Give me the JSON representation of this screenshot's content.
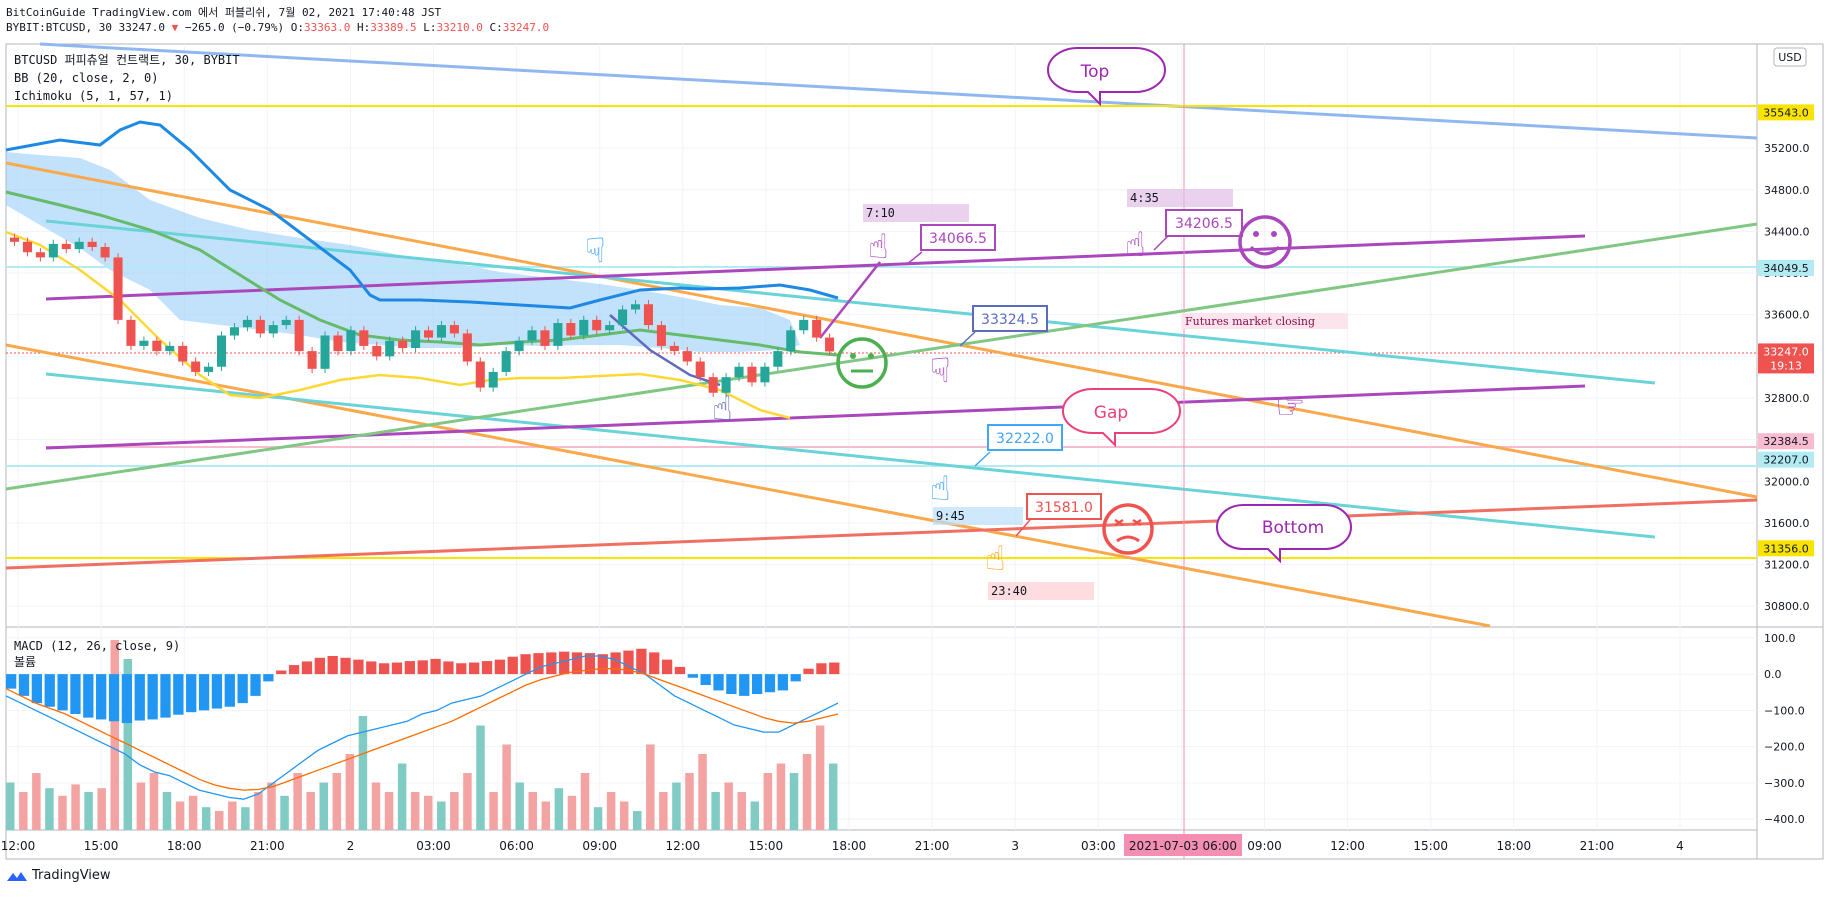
{
  "header": {
    "line1": "BitCoinGuide TradingView.com 에서 퍼블리쉬, 7월 02, 2021 17:40:48 JST",
    "symbol": "BYBIT:BTCUSD, 30",
    "last": "33247.0",
    "change": "−265.0 (−0.79%)",
    "o_label": "O:",
    "o": "33363.0",
    "h_label": "H:",
    "h": "33389.5",
    "l_label": "L:",
    "l": "33210.0",
    "c_label": "C:",
    "c": "33247.0"
  },
  "legend": {
    "title": "BTCUSD 퍼피츄얼 컨트랙트, 30, BYBIT",
    "bb": "BB (20, close, 2, 0)",
    "ichimoku": "Ichimoku (5, 1, 57, 1)",
    "macd": "MACD (12, 26, close, 9)",
    "volume": "볼륨"
  },
  "currency": "USD",
  "footer": {
    "brand": "TradingView"
  },
  "colors": {
    "up": "#26a69a",
    "down": "#ef5350",
    "accent": "#2962ff"
  },
  "chart_data": [
    {
      "type": "candlestick",
      "title": "BTCUSD 퍼피츄얼 컨트랙트, 30, BYBIT",
      "ylim": [
        30600,
        36200
      ],
      "y_ticks": [
        "35200.0",
        "34800.0",
        "34400.0",
        "34000.0",
        "33600.0",
        "33200.0",
        "32800.0",
        "32400.0",
        "32000.0",
        "31600.0",
        "31200.0",
        "30800.0"
      ],
      "x_ticks": [
        "12:00",
        "15:00",
        "18:00",
        "21:00",
        "2",
        "03:00",
        "06:00",
        "09:00",
        "12:00",
        "15:00",
        "18:00",
        "21:00",
        "3",
        "03:00",
        "06:00",
        "09:00",
        "12:00",
        "15:00",
        "18:00",
        "21:00",
        "4"
      ],
      "crosshair_label": "2021-07-03  06:00",
      "close": [
        34300,
        34200,
        34150,
        34280,
        34230,
        34300,
        34250,
        34150,
        33550,
        33300,
        33350,
        33250,
        33300,
        33150,
        33050,
        33100,
        33400,
        33480,
        33550,
        33420,
        33500,
        33550,
        33250,
        33080,
        33400,
        33250,
        33450,
        33300,
        33200,
        33350,
        33280,
        33450,
        33380,
        33500,
        33420,
        33150,
        32900,
        33050,
        33250,
        33350,
        33450,
        33300,
        33520,
        33400,
        33550,
        33450,
        33500,
        33650,
        33700,
        33500,
        33300,
        33250,
        33150,
        33000,
        32850,
        33000,
        33100,
        32950,
        33100,
        33250,
        33450,
        33550,
        33380,
        33247
      ],
      "price_labels": [
        {
          "value": "35543.0",
          "color": "#f9e400"
        },
        {
          "value": "34049.5",
          "color": "#b2ebf2"
        },
        {
          "value": "33247.0",
          "color": "#ef5350",
          "sub": "19:13"
        },
        {
          "value": "32384.5",
          "color": "#f8bbd0"
        },
        {
          "value": "32207.0",
          "color": "#b2ebf2"
        },
        {
          "value": "31356.0",
          "color": "#f9e400"
        }
      ],
      "annotations": {
        "callouts": [
          {
            "text": "34066.5",
            "color": "#ab47bc"
          },
          {
            "text": "34206.5",
            "color": "#ab47bc"
          },
          {
            "text": "33324.5",
            "color": "#5c6bc0"
          },
          {
            "text": "32222.0",
            "color": "#42a5f5"
          },
          {
            "text": "31581.0",
            "color": "#ef5350"
          }
        ],
        "bubbles": [
          {
            "text": "Top",
            "color": "#9c27b0"
          },
          {
            "text": "Gap",
            "color": "#ec407a"
          },
          {
            "text": "Bottom",
            "color": "#9c27b0"
          }
        ],
        "time_boxes": [
          "7:10",
          "4:35",
          "9:45",
          "23:40"
        ],
        "notes": [
          "Futures market closing"
        ]
      }
    },
    {
      "type": "bar",
      "title": "MACD (12, 26, close, 9)",
      "ylim": [
        -430,
        130
      ],
      "y_ticks": [
        "100.0",
        "0.0",
        "−100.0",
        "−200.0",
        "−300.0",
        "−400.0"
      ],
      "histogram": [
        -40,
        -60,
        -80,
        -90,
        -100,
        -110,
        -120,
        -125,
        -130,
        -135,
        -128,
        -125,
        -120,
        -112,
        -105,
        -100,
        -95,
        -90,
        -80,
        -60,
        -20,
        10,
        25,
        35,
        45,
        50,
        45,
        40,
        35,
        30,
        32,
        36,
        38,
        42,
        35,
        30,
        32,
        36,
        40,
        48,
        55,
        58,
        60,
        62,
        60,
        58,
        55,
        60,
        65,
        70,
        60,
        40,
        20,
        -10,
        -30,
        -45,
        -55,
        -60,
        -55,
        -50,
        -45,
        -20,
        15,
        30,
        32
      ],
      "macd": [
        -60,
        -80,
        -100,
        -120,
        -140,
        -160,
        -180,
        -200,
        -220,
        -250,
        -270,
        -280,
        -300,
        -320,
        -330,
        -340,
        -345,
        -330,
        -300,
        -270,
        -240,
        -210,
        -190,
        -170,
        -160,
        -150,
        -140,
        -130,
        -110,
        -100,
        -80,
        -70,
        -60,
        -40,
        -20,
        0,
        20,
        30,
        40,
        50,
        50,
        40,
        20,
        0,
        -30,
        -60,
        -80,
        -100,
        -120,
        -140,
        -150,
        -160,
        -160,
        -140,
        -120,
        -100,
        -80
      ],
      "signal": [
        -40,
        -60,
        -80,
        -95,
        -110,
        -130,
        -150,
        -170,
        -190,
        -210,
        -230,
        -250,
        -270,
        -290,
        -305,
        -315,
        -320,
        -318,
        -310,
        -295,
        -280,
        -265,
        -250,
        -235,
        -220,
        -205,
        -190,
        -175,
        -160,
        -145,
        -130,
        -110,
        -90,
        -70,
        -50,
        -30,
        -15,
        -5,
        5,
        10,
        15,
        15,
        10,
        0,
        -15,
        -30,
        -45,
        -60,
        -75,
        -90,
        -105,
        -120,
        -130,
        -135,
        -130,
        -120,
        -110
      ],
      "volume": [
        0.25,
        0.2,
        0.3,
        0.22,
        0.18,
        0.24,
        0.2,
        0.22,
        1.0,
        0.9,
        0.25,
        0.3,
        0.2,
        0.15,
        0.18,
        0.12,
        0.1,
        0.15,
        0.12,
        0.2,
        0.25,
        0.18,
        0.3,
        0.2,
        0.25,
        0.3,
        0.4,
        0.6,
        0.25,
        0.2,
        0.35,
        0.2,
        0.18,
        0.15,
        0.2,
        0.3,
        0.55,
        0.2,
        0.45,
        0.25,
        0.2,
        0.15,
        0.22,
        0.18,
        0.3,
        0.12,
        0.2,
        0.15,
        0.1,
        0.45,
        0.2,
        0.25,
        0.3,
        0.4,
        0.2,
        0.25,
        0.2,
        0.15,
        0.3,
        0.35,
        0.3,
        0.4,
        0.55,
        0.35
      ]
    }
  ]
}
